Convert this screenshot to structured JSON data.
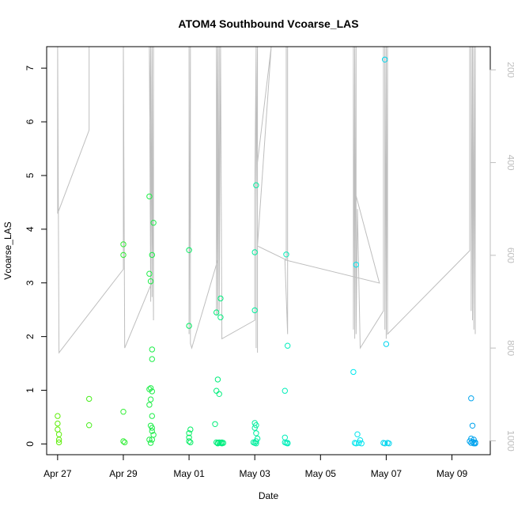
{
  "chart_data": {
    "type": "scatter",
    "title": "ATOM4 Southbound Vcoarse_LAS",
    "xlabel": "Date",
    "ylabel": "Vcoarse_LAS",
    "x_axis_type": "date",
    "xlim": [
      "2023-04-26 16:00",
      "2023-05-10 04:00"
    ],
    "ylim": [
      -0.2,
      7.4
    ],
    "x_ticks": [
      "Apr 27",
      "Apr 29",
      "May 01",
      "May 03",
      "May 05",
      "May 07",
      "May 09"
    ],
    "x_tick_dates": [
      "2023-04-27",
      "2023-04-29",
      "2023-05-01",
      "2023-05-03",
      "2023-05-05",
      "2023-05-07",
      "2023-05-09"
    ],
    "y_ticks": [
      0,
      1,
      2,
      3,
      4,
      5,
      6,
      7
    ],
    "secondary_axis": {
      "side": "right",
      "color": "#bebebe",
      "reversed": true,
      "ylim": [
        1030,
        150
      ],
      "ticks": [
        200,
        400,
        600,
        800,
        1000
      ]
    },
    "colors": {
      "points_start": "#66ee00",
      "points_mid": "#00ee66",
      "points_late": "#00eeee",
      "points_end": "#0099ee",
      "track": "#bebebe"
    },
    "series": [
      {
        "points": [
          [
            "2023-04-27 00:00",
            0.52
          ],
          [
            "2023-04-27 00:00",
            0.38
          ],
          [
            "2023-04-27 00:00",
            0.27
          ],
          [
            "2023-04-27 01:00",
            0.18
          ],
          [
            "2023-04-27 01:00",
            0.08
          ],
          [
            "2023-04-27 01:00",
            0.03
          ],
          [
            "2023-04-27 23:00",
            0.84
          ],
          [
            "2023-04-27 23:00",
            0.35
          ],
          [
            "2023-04-29 00:00",
            3.72
          ],
          [
            "2023-04-29 00:00",
            3.52
          ],
          [
            "2023-04-29 00:00",
            0.6
          ],
          [
            "2023-04-29 00:00",
            0.05
          ],
          [
            "2023-04-29 01:00",
            0.03
          ],
          [
            "2023-04-29 19:00",
            4.61
          ],
          [
            "2023-04-29 19:00",
            3.17
          ],
          [
            "2023-04-29 20:00",
            3.03
          ],
          [
            "2023-04-29 22:00",
            4.12
          ],
          [
            "2023-04-29 21:00",
            3.52
          ],
          [
            "2023-04-29 21:00",
            1.76
          ],
          [
            "2023-04-29 21:00",
            1.58
          ],
          [
            "2023-04-29 19:00",
            1.02
          ],
          [
            "2023-04-29 20:00",
            1.04
          ],
          [
            "2023-04-29 21:00",
            0.98
          ],
          [
            "2023-04-29 20:00",
            0.83
          ],
          [
            "2023-04-29 19:00",
            0.73
          ],
          [
            "2023-04-29 21:00",
            0.52
          ],
          [
            "2023-04-29 20:00",
            0.34
          ],
          [
            "2023-04-29 21:00",
            0.3
          ],
          [
            "2023-04-29 21:00",
            0.24
          ],
          [
            "2023-04-29 22:00",
            0.17
          ],
          [
            "2023-04-29 19:00",
            0.08
          ],
          [
            "2023-04-29 21:00",
            0.08
          ],
          [
            "2023-04-29 20:00",
            0.02
          ],
          [
            "2023-05-01 00:00",
            3.61
          ],
          [
            "2023-05-01 00:00",
            2.2
          ],
          [
            "2023-05-01 01:00",
            0.27
          ],
          [
            "2023-05-01 00:00",
            0.2
          ],
          [
            "2023-05-01 00:00",
            0.12
          ],
          [
            "2023-05-01 00:00",
            0.05
          ],
          [
            "2023-05-01 01:00",
            0.03
          ],
          [
            "2023-05-01 20:00",
            2.45
          ],
          [
            "2023-05-01 23:00",
            2.71
          ],
          [
            "2023-05-01 23:00",
            2.36
          ],
          [
            "2023-05-01 21:00",
            1.2
          ],
          [
            "2023-05-01 20:00",
            0.99
          ],
          [
            "2023-05-01 22:00",
            0.93
          ],
          [
            "2023-05-01 19:00",
            0.37
          ],
          [
            "2023-05-01 20:00",
            0.03
          ],
          [
            "2023-05-01 21:00",
            0.02
          ],
          [
            "2023-05-01 22:00",
            0.03
          ],
          [
            "2023-05-01 23:00",
            0.02
          ],
          [
            "2023-05-02 00:00",
            0.03
          ],
          [
            "2023-05-02 01:00",
            0.02
          ],
          [
            "2023-05-01 21:00",
            0.01
          ],
          [
            "2023-05-02 00:00",
            0.01
          ]
        ]
      },
      {
        "points": [
          [
            "2023-05-03 00:00",
            3.57
          ],
          [
            "2023-05-03 00:00",
            2.49
          ],
          [
            "2023-05-03 00:00",
            0.39
          ],
          [
            "2023-05-03 00:00",
            0.3
          ],
          [
            "2023-05-03 01:00",
            0.2
          ],
          [
            "2023-05-03 01:00",
            0.05
          ],
          [
            "2023-05-02 23:00",
            0.03
          ],
          [
            "2023-05-03 00:00",
            0.02
          ],
          [
            "2023-05-03 01:00",
            0.01
          ],
          [
            "2023-05-03 01:00",
            4.82
          ],
          [
            "2023-05-03 01:00",
            0.35
          ],
          [
            "2023-05-03 02:00",
            0.1
          ],
          [
            "2023-05-03 23:00",
            3.53
          ],
          [
            "2023-05-04 00:00",
            1.83
          ],
          [
            "2023-05-03 22:00",
            0.99
          ],
          [
            "2023-05-03 22:00",
            0.12
          ],
          [
            "2023-05-03 22:00",
            0.03
          ],
          [
            "2023-05-03 23:00",
            0.02
          ],
          [
            "2023-05-04 00:00",
            0.02
          ],
          [
            "2023-05-04 00:00",
            0.01
          ],
          [
            "2023-05-06 02:00",
            3.34
          ],
          [
            "2023-05-06 00:00",
            1.34
          ],
          [
            "2023-05-06 03:00",
            0.18
          ],
          [
            "2023-05-06 05:00",
            0.07
          ],
          [
            "2023-05-06 01:00",
            0.02
          ],
          [
            "2023-05-06 02:00",
            0.01
          ],
          [
            "2023-05-06 04:00",
            0.02
          ],
          [
            "2023-05-06 06:00",
            0.01
          ],
          [
            "2023-05-06 23:00",
            7.16
          ],
          [
            "2023-05-07 00:00",
            1.86
          ],
          [
            "2023-05-06 22:00",
            0.02
          ],
          [
            "2023-05-06 23:00",
            0.01
          ],
          [
            "2023-05-07 01:00",
            0.02
          ],
          [
            "2023-05-07 02:00",
            0.01
          ]
        ]
      },
      {
        "points": [
          [
            "2023-05-09 14:00",
            0.85
          ],
          [
            "2023-05-09 15:00",
            0.34
          ],
          [
            "2023-05-09 14:00",
            0.1
          ],
          [
            "2023-05-09 16:00",
            0.08
          ],
          [
            "2023-05-09 13:00",
            0.05
          ],
          [
            "2023-05-09 15:00",
            0.04
          ],
          [
            "2023-05-09 17:00",
            0.03
          ],
          [
            "2023-05-09 14:00",
            0.02
          ],
          [
            "2023-05-09 16:00",
            0.01
          ],
          [
            "2023-05-09 17:00",
            0.01
          ]
        ]
      }
    ],
    "track": {
      "points": [
        [
          "2023-04-27 00:00",
          150
        ],
        [
          "2023-04-27 00:00",
          510
        ],
        [
          "2023-04-27 23:00",
          330
        ],
        [
          "2023-04-27 23:00",
          150
        ],
        [
          "2023-04-27 23:00",
          150
        ],
        [
          "2023-04-27 00:00",
          150
        ],
        [
          "2023-04-27 01:00",
          810
        ],
        [
          "2023-04-29 00:00",
          630
        ],
        [
          "2023-04-29 00:00",
          150
        ],
        [
          "2023-04-29 01:00",
          800
        ],
        [
          "2023-04-29 22:00",
          650
        ],
        [
          "2023-04-29 19:00",
          150
        ],
        [
          "2023-04-29 20:00",
          700
        ],
        [
          "2023-04-29 20:00",
          150
        ],
        [
          "2023-04-29 21:00",
          690
        ],
        [
          "2023-04-29 21:00",
          150
        ],
        [
          "2023-04-29 22:00",
          740
        ],
        [
          "2023-04-29 22:00",
          150
        ],
        [
          "2023-05-01 00:00",
          150
        ],
        [
          "2023-05-01 00:00",
          770
        ],
        [
          "2023-05-01 01:00",
          150
        ],
        [
          "2023-05-01 01:00",
          790
        ],
        [
          "2023-05-01 02:00",
          800
        ],
        [
          "2023-05-01 21:00",
          610
        ],
        [
          "2023-05-01 20:00",
          150
        ],
        [
          "2023-05-01 20:00",
          730
        ],
        [
          "2023-05-01 21:00",
          150
        ],
        [
          "2023-05-01 21:00",
          730
        ],
        [
          "2023-05-01 22:00",
          150
        ],
        [
          "2023-05-01 22:00",
          720
        ],
        [
          "2023-05-01 23:00",
          150
        ],
        [
          "2023-05-02 00:00",
          780
        ],
        [
          "2023-05-03 00:00",
          740
        ],
        [
          "2023-05-03 00:00",
          470
        ],
        [
          "2023-05-03 01:00",
          150
        ],
        [
          "2023-05-03 01:00",
          800
        ],
        [
          "2023-05-03 01:00",
          500
        ],
        [
          "2023-05-03 02:00",
          150
        ],
        [
          "2023-05-03 02:00",
          810
        ],
        [
          "2023-05-03 02:00",
          400
        ],
        [
          "2023-05-03 12:00",
          150
        ],
        [
          "2023-05-03 02:00",
          580
        ],
        [
          "2023-05-03 23:00",
          610
        ],
        [
          "2023-05-03 23:00",
          150
        ],
        [
          "2023-05-04 00:00",
          150
        ],
        [
          "2023-05-04 00:00",
          770
        ],
        [
          "2023-05-03 22:00",
          610
        ],
        [
          "2023-05-06 19:00",
          660
        ],
        [
          "2023-05-06 00:00",
          450
        ],
        [
          "2023-05-06 00:00",
          150
        ],
        [
          "2023-05-06 00:00",
          760
        ],
        [
          "2023-05-06 01:00",
          150
        ],
        [
          "2023-05-06 01:00",
          780
        ],
        [
          "2023-05-06 02:00",
          150
        ],
        [
          "2023-05-06 02:00",
          770
        ],
        [
          "2023-05-06 03:00",
          500
        ],
        [
          "2023-05-06 05:00",
          800
        ],
        [
          "2023-05-06 22:00",
          720
        ],
        [
          "2023-05-06 22:00",
          150
        ],
        [
          "2023-05-06 23:00",
          150
        ],
        [
          "2023-05-06 23:00",
          760
        ],
        [
          "2023-05-07 00:00",
          150
        ],
        [
          "2023-05-07 00:00",
          780
        ],
        [
          "2023-05-07 01:00",
          150
        ],
        [
          "2023-05-07 01:00",
          770
        ],
        [
          "2023-05-09 13:00",
          590
        ],
        [
          "2023-05-09 13:00",
          150
        ],
        [
          "2023-05-09 14:00",
          150
        ],
        [
          "2023-05-09 14:00",
          720
        ],
        [
          "2023-05-09 15:00",
          150
        ],
        [
          "2023-05-09 15:00",
          740
        ],
        [
          "2023-05-09 16:00",
          150
        ],
        [
          "2023-05-09 16:00",
          760
        ],
        [
          "2023-05-09 17:00",
          150
        ],
        [
          "2023-05-09 17:00",
          770
        ]
      ]
    }
  }
}
